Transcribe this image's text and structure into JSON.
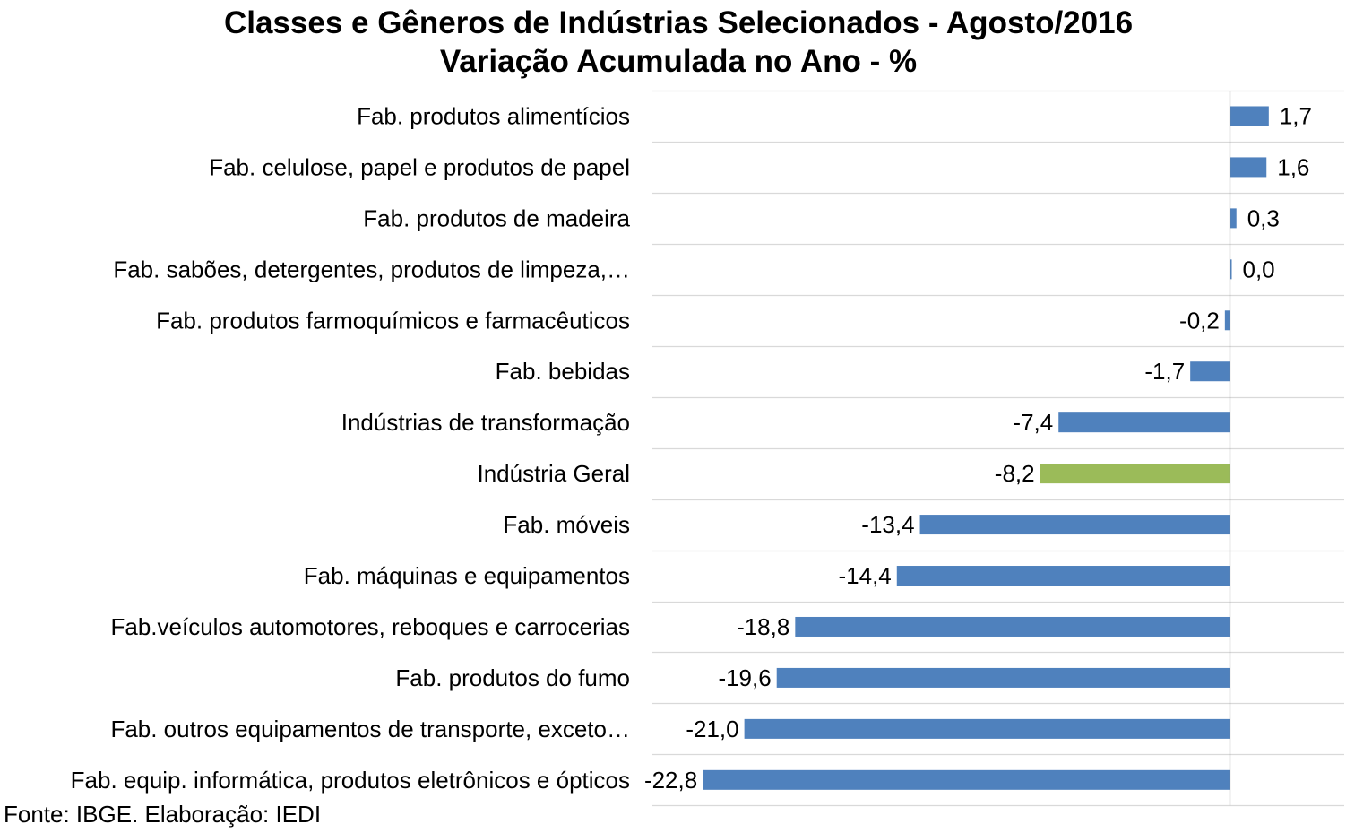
{
  "chart_data": {
    "type": "bar",
    "orientation": "horizontal",
    "title": "Classes e Gêneros de Indústrias Selecionados - Agosto/2016",
    "subtitle": "Variação Acumulada no Ano - %",
    "categories": [
      "Fab. produtos alimentícios",
      "Fab. celulose, papel e produtos de papel",
      "Fab. produtos de madeira",
      "Fab. sabões, detergentes, produtos de limpeza,…",
      "Fab. produtos farmoquímicos e farmacêuticos",
      "Fab. bebidas",
      "Indústrias de transformação",
      "Indústria Geral",
      "Fab. móveis",
      "Fab. máquinas e equipamentos",
      "Fab.veículos automotores, reboques e carrocerias",
      "Fab. produtos do fumo",
      "Fab. outros equipamentos de transporte, exceto…",
      "Fab. equip. informática, produtos eletrônicos e ópticos"
    ],
    "values": [
      1.7,
      1.6,
      0.3,
      0.0,
      -0.2,
      -1.7,
      -7.4,
      -8.2,
      -13.4,
      -14.4,
      -18.8,
      -19.6,
      -21.0,
      -22.8
    ],
    "value_labels": [
      "1,7",
      "1,6",
      "0,3",
      "0,0",
      "-0,2",
      "-1,7",
      "-7,4",
      "-8,2",
      "-13,4",
      "-14,4",
      "-18,8",
      "-19,6",
      "-21,0",
      "-22,8"
    ],
    "highlight_category": "Indústria Geral",
    "colors": {
      "default_bar": "#4F81BD",
      "highlight_bar": "#9BBB59",
      "gridline": "#D9D9D9",
      "axis": "#868686"
    },
    "xlim": [
      -25,
      5
    ],
    "grid": "horizontal",
    "legend": "none",
    "source": "Fonte: IBGE. Elaboração: IEDI"
  }
}
